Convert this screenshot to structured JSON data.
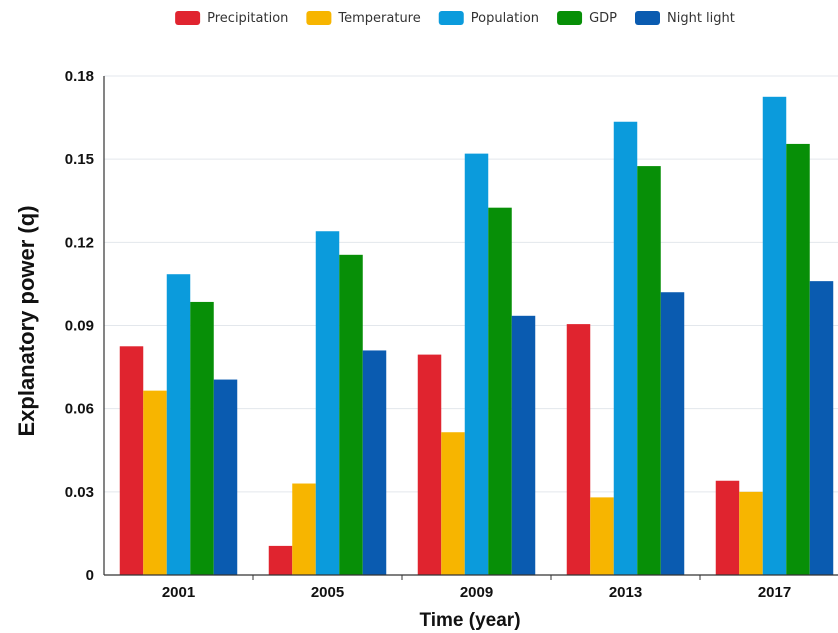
{
  "chart_data": {
    "type": "bar",
    "title": "",
    "xlabel": "Time (year)",
    "ylabel": "Explanatory power (q)",
    "categories": [
      "2001",
      "2005",
      "2009",
      "2013",
      "2017"
    ],
    "ylim": [
      0,
      0.18
    ],
    "yticks": [
      "0",
      "0.03",
      "0.06",
      "0.09",
      "0.12",
      "0.15",
      "0.18"
    ],
    "grid": true,
    "legend_position": "top-center",
    "series": [
      {
        "name": "Precipitation",
        "color": "#e0242f",
        "values": [
          0.0825,
          0.0105,
          0.0795,
          0.0905,
          0.034
        ]
      },
      {
        "name": "Temperature",
        "color": "#f7b500",
        "values": [
          0.0665,
          0.033,
          0.0515,
          0.028,
          0.03
        ]
      },
      {
        "name": "Population",
        "color": "#0b9bdc",
        "values": [
          0.1085,
          0.124,
          0.152,
          0.1635,
          0.1725
        ]
      },
      {
        "name": "GDP",
        "color": "#078f07",
        "values": [
          0.0985,
          0.1155,
          0.1325,
          0.1475,
          0.1555
        ]
      },
      {
        "name": "Night light",
        "color": "#0a5bb0",
        "values": [
          0.0705,
          0.081,
          0.0935,
          0.102,
          0.106
        ]
      }
    ]
  }
}
